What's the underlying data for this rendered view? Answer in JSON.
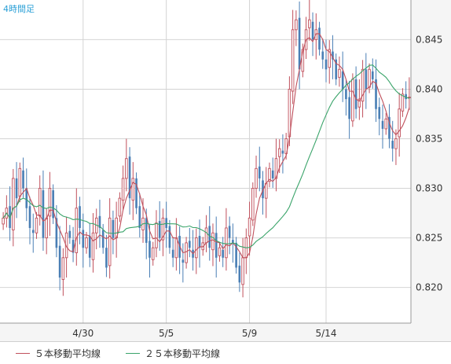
{
  "chart_data": {
    "type": "candlestick",
    "title": "4時間足",
    "xlabel": "",
    "ylabel": "",
    "x_ticks": [
      "4/30",
      "5/5",
      "5/9",
      "5/14"
    ],
    "x_tick_index": [
      24,
      49,
      74,
      97
    ],
    "y_ticks": [
      0.82,
      0.825,
      0.83,
      0.835,
      0.84,
      0.845
    ],
    "ylim": [
      0.8164,
      0.849
    ],
    "grid": true,
    "legend_position": "bottom",
    "colors": {
      "up": "#c0505c",
      "down": "#4a7fb5",
      "ma5": "#c0505c",
      "ma25": "#3aa46a",
      "grid": "#d4d4d4",
      "plot_bg": "#ffffff",
      "panel_bg": "#f5f5f5"
    },
    "series": [
      {
        "name": "５本移動平均線",
        "kind": "ma",
        "period": 5,
        "color": "#c0505c"
      },
      {
        "name": "２５本移動平均線",
        "kind": "ma",
        "period": 25,
        "color": "#3aa46a"
      }
    ],
    "closes": [
      0.827,
      0.828,
      0.826,
      0.831,
      0.829,
      0.832,
      0.83,
      0.828,
      0.826,
      0.8255,
      0.827,
      0.83,
      0.825,
      0.827,
      0.83,
      0.827,
      0.824,
      0.821,
      0.823,
      0.8255,
      0.825,
      0.8235,
      0.828,
      0.826,
      0.824,
      0.825,
      0.823,
      0.8255,
      0.827,
      0.826,
      0.824,
      0.822,
      0.827,
      0.825,
      0.827,
      0.829,
      0.831,
      0.833,
      0.829,
      0.831,
      0.828,
      0.826,
      0.827,
      0.8245,
      0.823,
      0.824,
      0.8265,
      0.825,
      0.827,
      0.826,
      0.824,
      0.823,
      0.825,
      0.823,
      0.8225,
      0.8245,
      0.824,
      0.823,
      0.825,
      0.824,
      0.8245,
      0.826,
      0.824,
      0.8255,
      0.823,
      0.824,
      0.823,
      0.826,
      0.825,
      0.8245,
      0.822,
      0.8205,
      0.823,
      0.825,
      0.827,
      0.83,
      0.832,
      0.831,
      0.829,
      0.8305,
      0.832,
      0.831,
      0.833,
      0.834,
      0.8335,
      0.835,
      0.84,
      0.846,
      0.847,
      0.842,
      0.844,
      0.846,
      0.847,
      0.845,
      0.846,
      0.844,
      0.843,
      0.842,
      0.844,
      0.843,
      0.841,
      0.842,
      0.84,
      0.839,
      0.837,
      0.841,
      0.838,
      0.839,
      0.842,
      0.84,
      0.842,
      0.841,
      0.838,
      0.837,
      0.836,
      0.837,
      0.835,
      0.834,
      0.835,
      0.838,
      0.8395,
      0.839,
      0.8392
    ]
  },
  "legend": {
    "ma5_label": "５本移動平均線",
    "ma25_label": "２５本移動平均線"
  }
}
